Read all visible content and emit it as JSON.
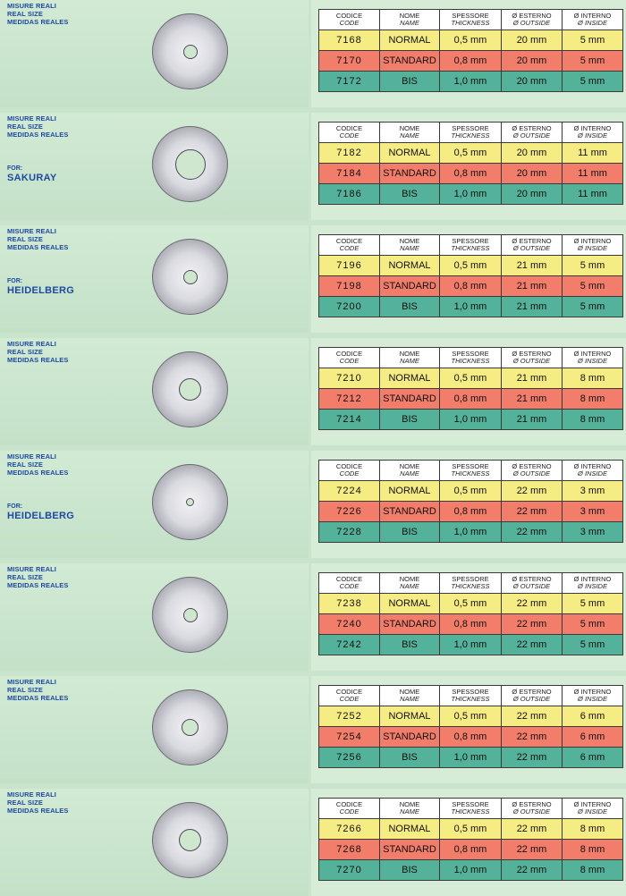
{
  "labels": {
    "real_size_it": "MISURE REALI",
    "real_size_en": "REAL SIZE",
    "real_size_es": "MEDIDAS REALES",
    "for": "FOR:"
  },
  "headers": {
    "code_it": "CODICE",
    "code_en": "CODE",
    "name_it": "NOME",
    "name_en": "NAME",
    "thickness_it": "SPESSORE",
    "thickness_en": "THICKNESS",
    "outside_it": "Ø ESTERNO",
    "outside_en": "Ø OUTSIDE",
    "inside_it": "Ø INTERNO",
    "inside_en": "Ø INSIDE"
  },
  "row_colors": {
    "normal": "#f6ec84",
    "standard": "#f27d6a",
    "bis": "#54b29a"
  },
  "sections": [
    {
      "brand": "",
      "hole_mm": 5,
      "rows": [
        {
          "code": "7168",
          "name": "NORMAL",
          "thickness": "0,5 mm",
          "outside": "20 mm",
          "inside": "5 mm"
        },
        {
          "code": "7170",
          "name": "STANDARD",
          "thickness": "0,8 mm",
          "outside": "20 mm",
          "inside": "5 mm"
        },
        {
          "code": "7172",
          "name": "BIS",
          "thickness": "1,0 mm",
          "outside": "20 mm",
          "inside": "5 mm"
        }
      ]
    },
    {
      "brand": "SAKURAY",
      "hole_mm": 11,
      "rows": [
        {
          "code": "7182",
          "name": "NORMAL",
          "thickness": "0,5 mm",
          "outside": "20 mm",
          "inside": "11 mm"
        },
        {
          "code": "7184",
          "name": "STANDARD",
          "thickness": "0,8 mm",
          "outside": "20 mm",
          "inside": "11 mm"
        },
        {
          "code": "7186",
          "name": "BIS",
          "thickness": "1,0 mm",
          "outside": "20 mm",
          "inside": "11 mm"
        }
      ]
    },
    {
      "brand": "HEIDELBERG",
      "hole_mm": 5,
      "rows": [
        {
          "code": "7196",
          "name": "NORMAL",
          "thickness": "0,5 mm",
          "outside": "21 mm",
          "inside": "5 mm"
        },
        {
          "code": "7198",
          "name": "STANDARD",
          "thickness": "0,8 mm",
          "outside": "21 mm",
          "inside": "5 mm"
        },
        {
          "code": "7200",
          "name": "BIS",
          "thickness": "1,0 mm",
          "outside": "21 mm",
          "inside": "5 mm"
        }
      ]
    },
    {
      "brand": "",
      "hole_mm": 8,
      "rows": [
        {
          "code": "7210",
          "name": "NORMAL",
          "thickness": "0,5 mm",
          "outside": "21 mm",
          "inside": "8 mm"
        },
        {
          "code": "7212",
          "name": "STANDARD",
          "thickness": "0,8 mm",
          "outside": "21 mm",
          "inside": "8 mm"
        },
        {
          "code": "7214",
          "name": "BIS",
          "thickness": "1,0 mm",
          "outside": "21 mm",
          "inside": "8 mm"
        }
      ]
    },
    {
      "brand": "HEIDELBERG",
      "hole_mm": 3,
      "rows": [
        {
          "code": "7224",
          "name": "NORMAL",
          "thickness": "0,5 mm",
          "outside": "22 mm",
          "inside": "3 mm"
        },
        {
          "code": "7226",
          "name": "STANDARD",
          "thickness": "0,8 mm",
          "outside": "22 mm",
          "inside": "3 mm"
        },
        {
          "code": "7228",
          "name": "BIS",
          "thickness": "1,0 mm",
          "outside": "22 mm",
          "inside": "3 mm"
        }
      ]
    },
    {
      "brand": "",
      "hole_mm": 5,
      "rows": [
        {
          "code": "7238",
          "name": "NORMAL",
          "thickness": "0,5 mm",
          "outside": "22 mm",
          "inside": "5 mm"
        },
        {
          "code": "7240",
          "name": "STANDARD",
          "thickness": "0,8 mm",
          "outside": "22 mm",
          "inside": "5 mm"
        },
        {
          "code": "7242",
          "name": "BIS",
          "thickness": "1,0 mm",
          "outside": "22 mm",
          "inside": "5 mm"
        }
      ]
    },
    {
      "brand": "",
      "hole_mm": 6,
      "rows": [
        {
          "code": "7252",
          "name": "NORMAL",
          "thickness": "0,5 mm",
          "outside": "22 mm",
          "inside": "6 mm"
        },
        {
          "code": "7254",
          "name": "STANDARD",
          "thickness": "0,8 mm",
          "outside": "22 mm",
          "inside": "6 mm"
        },
        {
          "code": "7256",
          "name": "BIS",
          "thickness": "1,0 mm",
          "outside": "22 mm",
          "inside": "6 mm"
        }
      ]
    },
    {
      "brand": "",
      "hole_mm": 8,
      "rows": [
        {
          "code": "7266",
          "name": "NORMAL",
          "thickness": "0,5 mm",
          "outside": "22 mm",
          "inside": "8 mm"
        },
        {
          "code": "7268",
          "name": "STANDARD",
          "thickness": "0,8 mm",
          "outside": "22 mm",
          "inside": "8 mm"
        },
        {
          "code": "7270",
          "name": "BIS",
          "thickness": "1,0 mm",
          "outside": "22 mm",
          "inside": "8 mm"
        }
      ]
    }
  ]
}
